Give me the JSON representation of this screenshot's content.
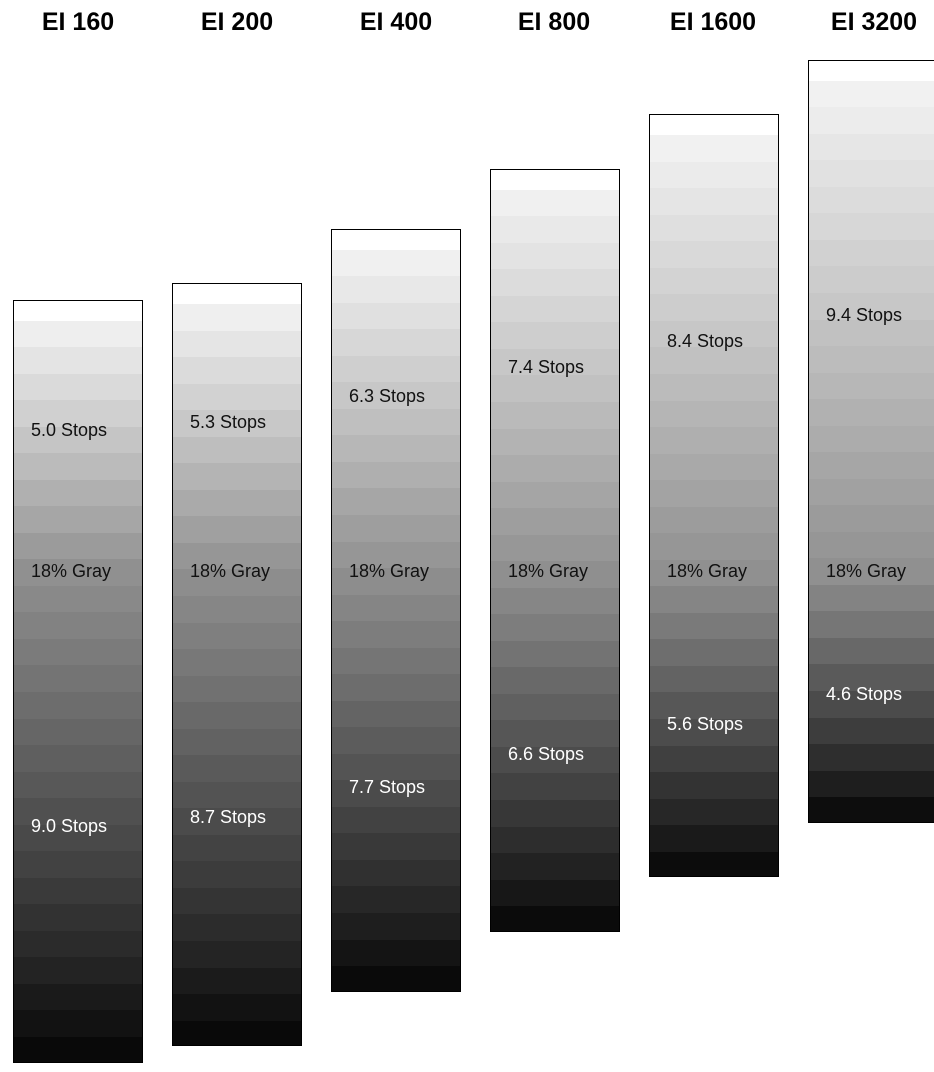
{
  "chart_data": {
    "type": "other",
    "description_type": "exposure index gray-scale latitude strips",
    "columns": [
      {
        "title": "EI 160",
        "over_label": "5.0 Stops",
        "mid_label": "18% Gray",
        "under_label": "9.0 Stops",
        "over_stops": 5.0,
        "under_stops": 9.0
      },
      {
        "title": "EI 200",
        "over_label": "5.3 Stops",
        "mid_label": "18% Gray",
        "under_label": "8.7 Stops",
        "over_stops": 5.3,
        "under_stops": 8.7
      },
      {
        "title": "EI 400",
        "over_label": "6.3 Stops",
        "mid_label": "18% Gray",
        "under_label": "7.7 Stops",
        "over_stops": 6.3,
        "under_stops": 7.7
      },
      {
        "title": "EI 800",
        "over_label": "7.4 Stops",
        "mid_label": "18% Gray",
        "under_label": "6.6 Stops",
        "over_stops": 7.4,
        "under_stops": 6.6
      },
      {
        "title": "EI 1600",
        "over_label": "8.4 Stops",
        "mid_label": "18% Gray",
        "under_label": "5.6 Stops",
        "over_stops": 8.4,
        "under_stops": 5.6
      },
      {
        "title": "EI 3200",
        "over_label": "9.4 Stops",
        "mid_label": "18% Gray",
        "under_label": "4.6 Stops",
        "over_stops": 9.4,
        "under_stops": 4.6
      }
    ]
  },
  "colors": {
    "border": "#000000",
    "over_text": "#111111",
    "under_text": "#ffffff"
  }
}
